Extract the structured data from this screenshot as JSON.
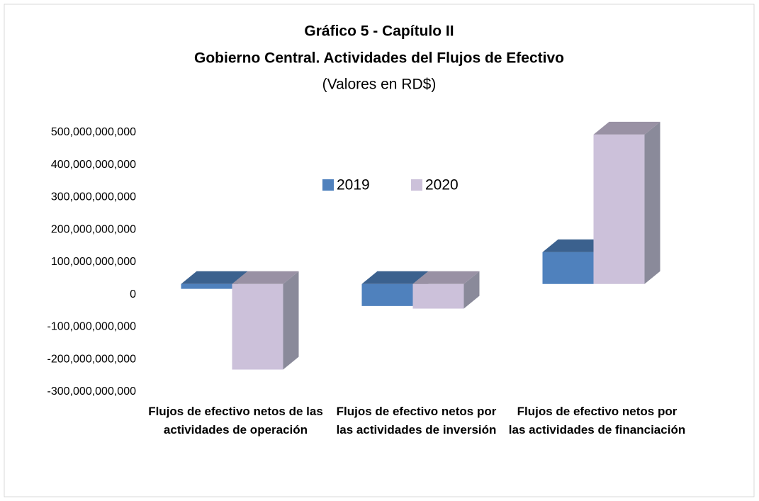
{
  "chart_data": {
    "type": "bar3d",
    "title": "Gráfico 5 - Capítulo II",
    "subtitle": "Gobierno Central. Actividades del Flujos de Efectivo",
    "unit_note": "(Valores en RD$)",
    "categories": [
      "Flujos de efectivo netos de las actividades de operación",
      "Flujos de efectivo netos por las actividades de inversión",
      "Flujos de efectivo netos por las actividades de financiación"
    ],
    "series": [
      {
        "name": "2019",
        "color": "#4f81bd",
        "values": [
          -15000000000,
          -68000000000,
          98000000000
        ]
      },
      {
        "name": "2020",
        "color": "#ccc1da",
        "values": [
          -264000000000,
          -76000000000,
          461000000000
        ]
      }
    ],
    "ylim": [
      -300000000000,
      500000000000
    ],
    "yticks": [
      {
        "value": -300000000000,
        "label": "-300,000,000,000"
      },
      {
        "value": -200000000000,
        "label": "-200,000,000,000"
      },
      {
        "value": -100000000000,
        "label": "-100,000,000,000"
      },
      0,
      {
        "value": 100000000000,
        "label": "100,000,000,000"
      },
      {
        "value": 200000000000,
        "label": "200,000,000,000"
      },
      {
        "value": 300000000000,
        "label": "300,000,000,000"
      },
      {
        "value": 400000000000,
        "label": "400,000,000,000"
      },
      {
        "value": 500000000000,
        "label": "500,000,000,000"
      }
    ],
    "legend": "top"
  }
}
